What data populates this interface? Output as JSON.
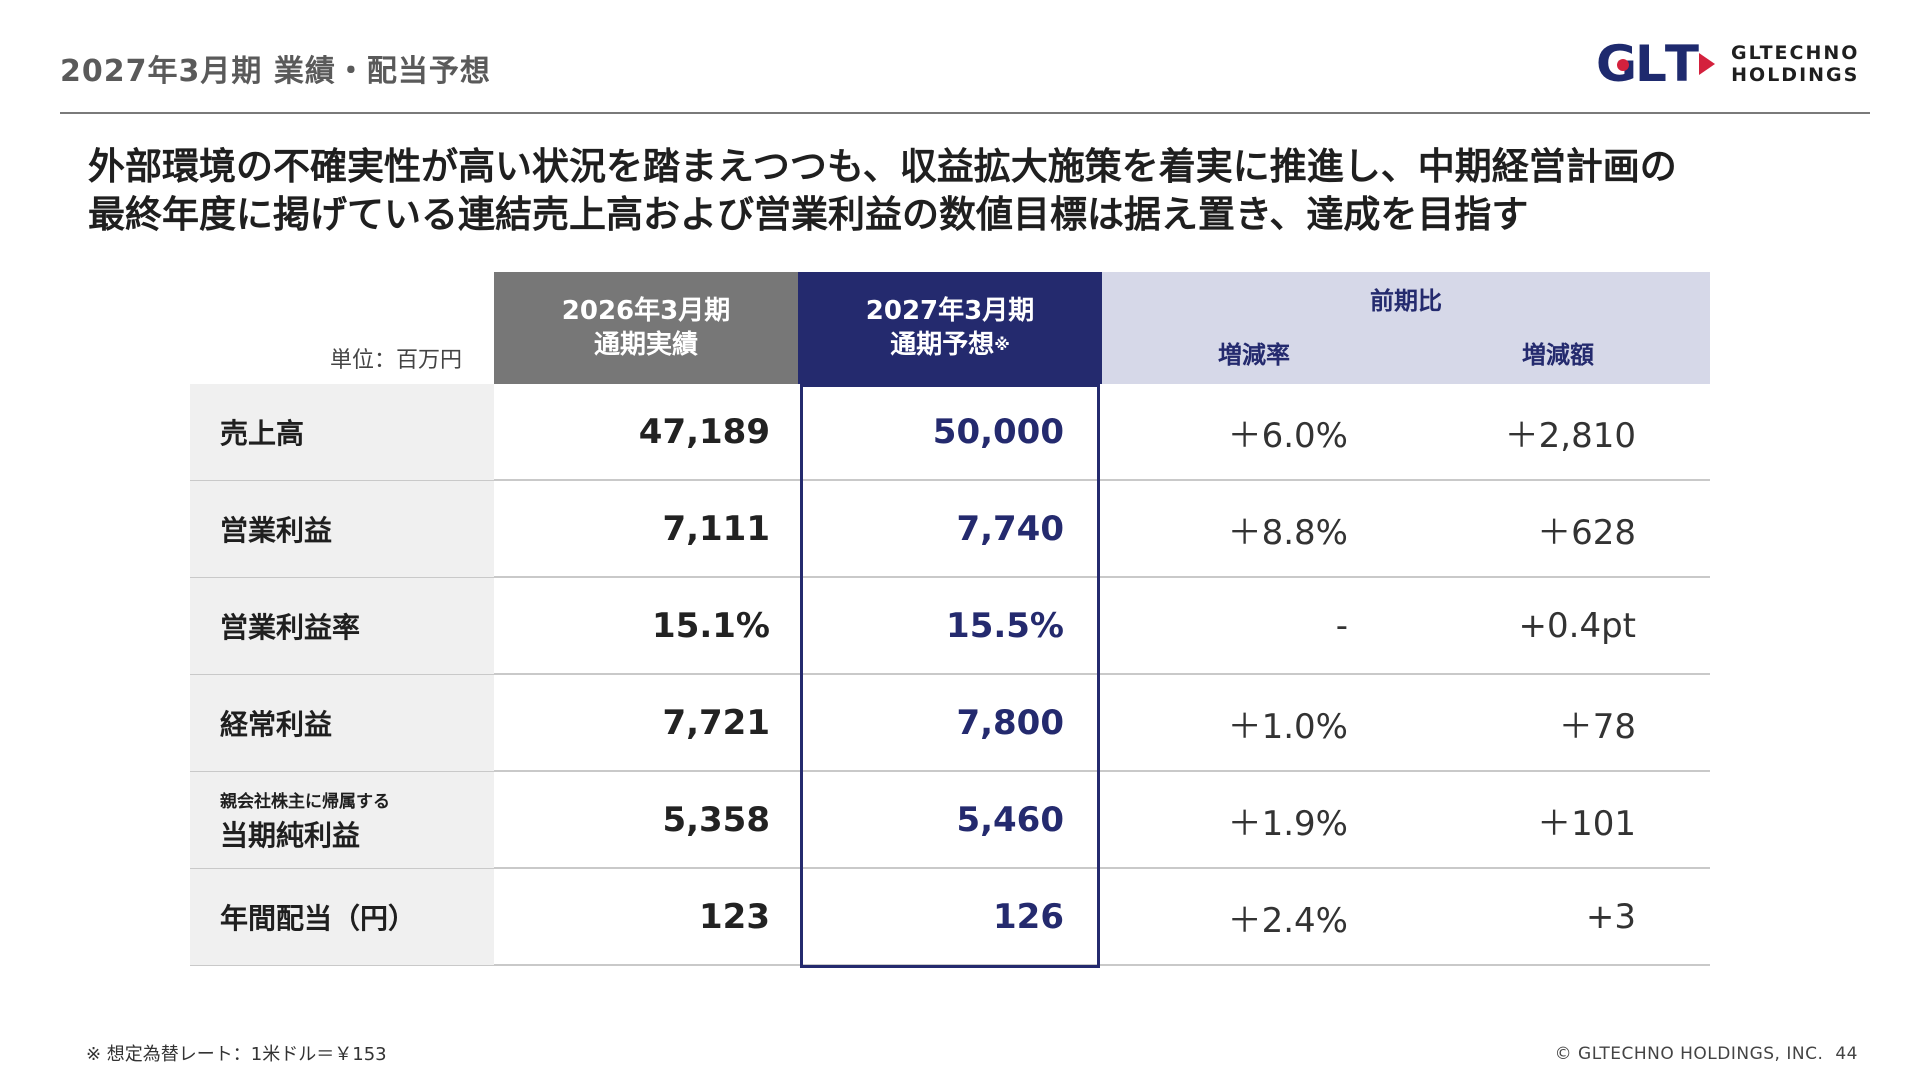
{
  "header": {
    "title": "2027年3月期  業績・配当予想",
    "logo": {
      "mark": "GLT",
      "line1": "GLTECHNO",
      "line2": "HOLDINGS",
      "colors": {
        "navy": "#1e2a6e",
        "red": "#d4213d"
      }
    }
  },
  "lead": {
    "line1": "外部環境の不確実性が高い状況を踏まえつつも、収益拡大施策を着実に推進し、中期経営計画の",
    "line2": "最終年度に掲げている連結売上高および営業利益の数値目標は据え置き、達成を目指す"
  },
  "table": {
    "unit": "単位：百万円",
    "columns": {
      "actual": {
        "line1": "2026年3月期",
        "line2": "通期実績"
      },
      "forecast": {
        "line1": "2027年3月期",
        "line2": "通期予想",
        "mark": "※"
      },
      "compare": {
        "title": "前期比",
        "rate": "増減率",
        "amount": "増減額"
      }
    },
    "rows": [
      {
        "label": "売上高",
        "actual": "47,189",
        "forecast": "50,000",
        "rate": "＋6.0%",
        "amount": "＋2,810"
      },
      {
        "label": "営業利益",
        "actual": "7,111",
        "forecast": "7,740",
        "rate": "＋8.8%",
        "amount": "＋628"
      },
      {
        "label": "営業利益率",
        "actual": "15.1%",
        "forecast": "15.5%",
        "rate": "-",
        "amount": "+0.4pt"
      },
      {
        "label": "経常利益",
        "actual": "7,721",
        "forecast": "7,800",
        "rate": "＋1.0%",
        "amount": "＋78"
      },
      {
        "label_small": "親会社株主に帰属する",
        "label": "当期純利益",
        "actual": "5,358",
        "forecast": "5,460",
        "rate": "＋1.9%",
        "amount": "＋101"
      },
      {
        "label": "年間配当（円）",
        "actual": "123",
        "forecast": "126",
        "rate": "＋2.4%",
        "amount": "+3"
      }
    ]
  },
  "footer": {
    "note": "※ 想定為替レート：1米ドル＝￥153",
    "copyright": "© GLTECHNO HOLDINGS, INC.",
    "page": "44"
  }
}
